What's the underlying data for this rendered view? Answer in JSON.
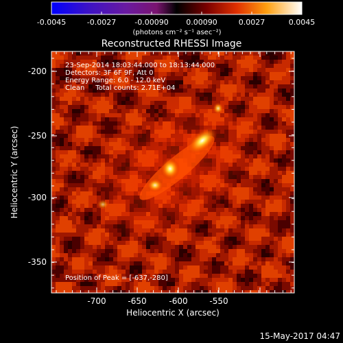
{
  "colorbar": {
    "tick_labels": [
      "-0.0045",
      "-0.0027",
      "-0.00090",
      "0.00090",
      "0.0027",
      "0.0045"
    ],
    "unit_label": "(photons cm⁻² s⁻¹ asec⁻²)"
  },
  "plot": {
    "title": "Reconstructed RHESSI Image",
    "xlabel": "Heliocentric X (arcsec)",
    "ylabel": "Heliocentric Y (arcsec)",
    "x_ticks": [
      "-700",
      "-650",
      "-600",
      "-550"
    ],
    "y_ticks": [
      "-200",
      "-250",
      "-300",
      "-350"
    ],
    "info_lines": [
      "23-Sep-2014 18:03:44.000 to 18:13:44.000",
      "Detectors: 3F 6F 9F, Att 0",
      "Energy Range: 6.0 - 12.0 keV",
      "Clean     Total counts: 2.71E+04"
    ],
    "peak_label": "Position of Peak = [-637,-280]"
  },
  "footer": {
    "date": "15-May-2017 04:47"
  },
  "colors": {
    "background": "#000000",
    "text": "#ffffff"
  }
}
